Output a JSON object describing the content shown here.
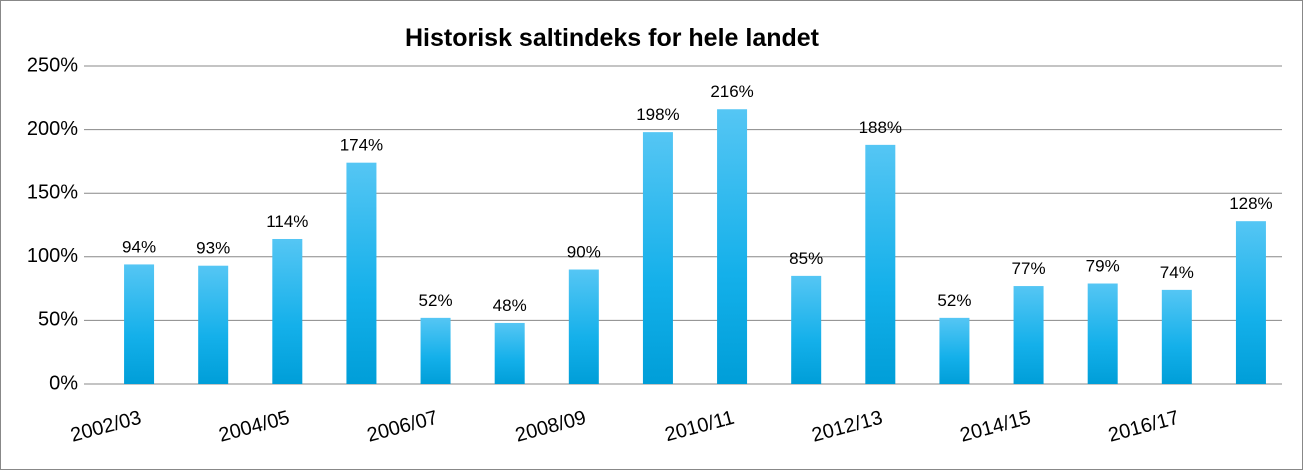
{
  "chart_data": {
    "type": "bar",
    "title": "Historisk saltindeks for hele landet",
    "categories": [
      "2002/03",
      null,
      "2004/05",
      null,
      "2006/07",
      null,
      "2008/09",
      null,
      "2010/11",
      null,
      "2012/13",
      null,
      "2014/15",
      null,
      "2016/17",
      null
    ],
    "values": [
      94,
      93,
      114,
      174,
      52,
      48,
      90,
      198,
      216,
      85,
      188,
      52,
      77,
      79,
      74,
      128
    ],
    "value_labels": [
      "94%",
      "93%",
      "114%",
      "174%",
      "52%",
      "48%",
      "90%",
      "198%",
      "216%",
      "85%",
      "188%",
      "52%",
      "77%",
      "79%",
      "74%",
      "128%"
    ],
    "color": "#1ab4ec",
    "ylim": [
      0,
      250
    ],
    "yticks": [
      {
        "value": 0,
        "label": "0%"
      },
      {
        "value": 50,
        "label": "50%"
      },
      {
        "value": 100,
        "label": "100%"
      },
      {
        "value": 150,
        "label": "150%"
      },
      {
        "value": 200,
        "label": "200%"
      },
      {
        "value": 250,
        "label": "250%"
      }
    ],
    "grid": true
  }
}
